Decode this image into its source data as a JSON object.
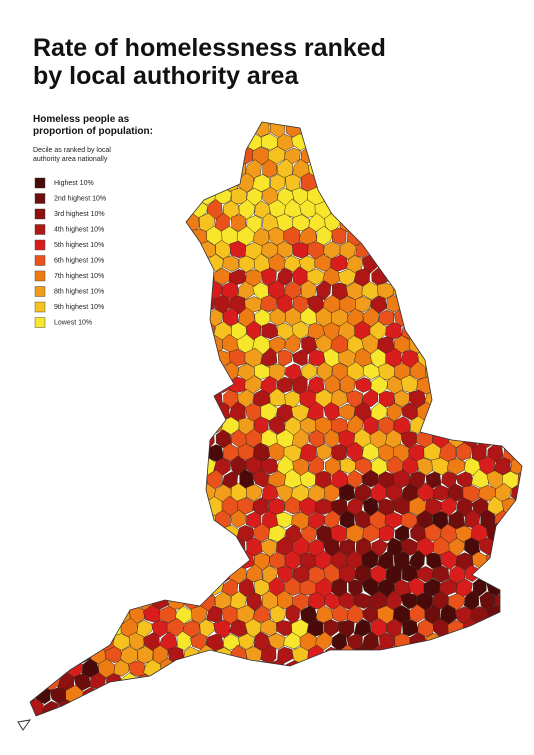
{
  "header": {
    "title": [
      "Rate of homelessness ranked",
      "by local authority area"
    ]
  },
  "legend": {
    "heading": [
      "Homeless people as",
      "proportion of population:"
    ],
    "note": [
      "Decile as ranked by local",
      "authority area nationally"
    ],
    "items": [
      {
        "label": "Highest 10%",
        "color": "#4a0a0a"
      },
      {
        "label": "2nd highest 10%",
        "color": "#6e0d0d"
      },
      {
        "label": "3rd highest 10%",
        "color": "#8e1111"
      },
      {
        "label": "4th highest 10%",
        "color": "#b01616"
      },
      {
        "label": "5th highest 10%",
        "color": "#d91c1c"
      },
      {
        "label": "6th highest 10%",
        "color": "#e9521b"
      },
      {
        "label": "7th highest 10%",
        "color": "#ef7b15"
      },
      {
        "label": "8th highest 10%",
        "color": "#f29c1b"
      },
      {
        "label": "9th highest 10%",
        "color": "#f6c220"
      },
      {
        "label": "Lowest 10%",
        "color": "#f7e62b"
      }
    ]
  }
}
